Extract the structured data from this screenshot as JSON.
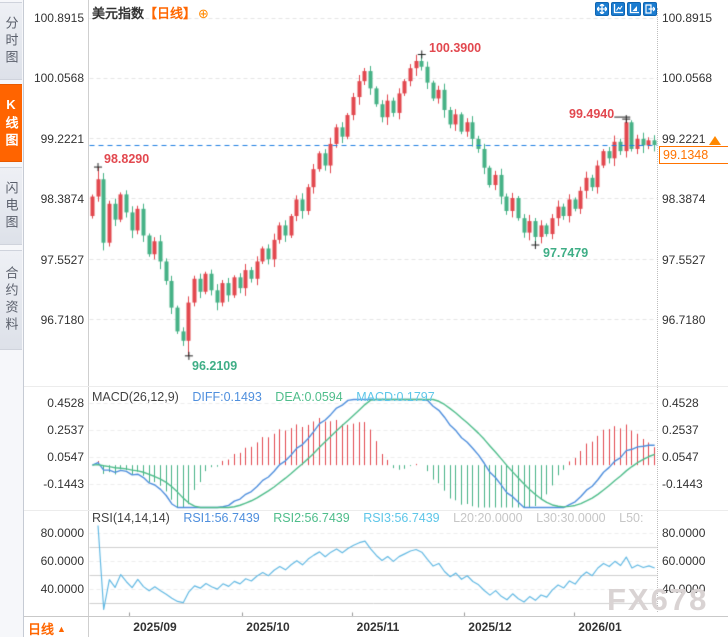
{
  "header": {
    "symbol": "美元指数",
    "period_tag": "【日线】",
    "add_indicator_icon": "⊕"
  },
  "sidebar": {
    "active_index": 1,
    "tabs": [
      {
        "label": "分时图"
      },
      {
        "label": "K线图"
      },
      {
        "label": "闪电图"
      },
      {
        "label": "合约资料"
      }
    ]
  },
  "toolbar": {
    "icons": [
      "pan-icon",
      "axis-zoom-icon",
      "axis-auto-icon",
      "go-latest-icon"
    ]
  },
  "main_chart": {
    "y_labels": [
      "100.8915",
      "100.0568",
      "99.2221",
      "98.3874",
      "97.5527",
      "96.7180"
    ],
    "current_price": "99.1348",
    "annotations": [
      {
        "text": "98.8290",
        "color": "red"
      },
      {
        "text": "100.3900",
        "color": "red"
      },
      {
        "text": "99.4940",
        "color": "red"
      },
      {
        "text": "97.7479",
        "color": "green"
      },
      {
        "text": "96.2109",
        "color": "green"
      }
    ]
  },
  "macd_panel": {
    "title": "MACD(26,12,9)",
    "diff_label": "DIFF:0.1493",
    "dea_label": "DEA:0.0594",
    "macd_label": "MACD:0.1797",
    "y_labels": [
      "0.4528",
      "0.2537",
      "0.0547",
      "-0.1443"
    ]
  },
  "rsi_panel": {
    "title": "RSI(14,14,14)",
    "rsi1_label": "RSI1:56.7439",
    "rsi2_label": "RSI2:56.7439",
    "rsi3_label": "RSI3:56.7439",
    "l20_label": "L20:20.0000",
    "l30_label": "L30:30.0000",
    "l50_label": "L50:",
    "y_labels": [
      "80.0000",
      "60.0000",
      "40.0000"
    ]
  },
  "x_axis": {
    "period_label": "日线",
    "labels": [
      "2025/09",
      "2025/10",
      "2025/11",
      "2025/12",
      "2026/01"
    ]
  },
  "watermark": "FX678",
  "colors": {
    "up": "#e2484f",
    "down": "#46b286",
    "accent_orange": "#ff6600",
    "price_line": "#1e7ee0",
    "diff_line": "#4f8fdd",
    "dea_line": "#4fbd8b",
    "rsi_line": "#63b9e3",
    "grid": "#e4e4e4",
    "ref_line": "#cfcfcf",
    "toolbar_blue": "#1b7cd0"
  },
  "chart_data": [
    {
      "type": "candlestick",
      "title": "美元指数 日线",
      "x_tick_labels": [
        "2025/09",
        "2025/10",
        "2025/11",
        "2025/12",
        "2026/01"
      ],
      "x_tick_indices": [
        11,
        31,
        50,
        70,
        89
      ],
      "ylim": [
        95.8,
        101.0
      ],
      "y_ticks": [
        100.8915,
        100.0568,
        99.2221,
        98.3874,
        97.5527,
        96.718
      ],
      "last": 99.1348,
      "open_first": 98.15,
      "closes": [
        98.42,
        98.66,
        97.78,
        98.32,
        98.1,
        98.45,
        98.2,
        97.95,
        98.25,
        97.88,
        97.62,
        97.8,
        97.52,
        97.25,
        96.88,
        96.55,
        96.42,
        96.95,
        97.28,
        97.1,
        97.35,
        97.12,
        96.95,
        97.22,
        97.05,
        97.3,
        97.15,
        97.4,
        97.28,
        97.52,
        97.7,
        97.55,
        97.82,
        98.02,
        97.88,
        98.15,
        98.38,
        98.22,
        98.55,
        98.8,
        99.02,
        98.85,
        99.15,
        99.38,
        99.25,
        99.55,
        99.8,
        100.02,
        100.16,
        99.92,
        99.7,
        99.52,
        99.75,
        99.58,
        99.85,
        100.02,
        100.2,
        100.3,
        100.22,
        100.0,
        99.78,
        99.9,
        99.62,
        99.42,
        99.56,
        99.32,
        99.45,
        99.22,
        99.08,
        98.82,
        98.58,
        98.72,
        98.42,
        98.22,
        98.4,
        98.12,
        97.92,
        98.08,
        97.86,
        98.02,
        97.9,
        98.12,
        98.28,
        98.15,
        98.38,
        98.25,
        98.5,
        98.68,
        98.55,
        98.85,
        99.05,
        98.95,
        99.18,
        99.05,
        99.45,
        99.08,
        99.22,
        99.13,
        99.2,
        99.1348
      ],
      "wick_overrides": {
        "1": {
          "high": 98.829
        },
        "17": {
          "low": 96.2109
        },
        "58": {
          "high": 100.39
        },
        "78": {
          "low": 97.7479
        },
        "94": {
          "high": 99.494
        }
      },
      "key_points": [
        {
          "index": 1,
          "price": 98.829,
          "label": "98.8290"
        },
        {
          "index": 17,
          "price": 96.2109,
          "label": "96.2109"
        },
        {
          "index": 58,
          "price": 100.39,
          "label": "100.3900"
        },
        {
          "index": 78,
          "price": 97.7479,
          "label": "97.7479"
        },
        {
          "index": 94,
          "price": 99.494,
          "label": "99.4940"
        }
      ]
    },
    {
      "type": "macd",
      "params": [
        26,
        12,
        9
      ],
      "current": {
        "diff": 0.1493,
        "dea": 0.0594,
        "macd": 0.1797
      },
      "y_ticks": [
        0.4528,
        0.2537,
        0.0547,
        -0.1443
      ],
      "derived_from": "closes of series 0 (EMA12-EMA26, DEA=EMA9(DIFF), hist=2*(DIFF-DEA))"
    },
    {
      "type": "line",
      "name": "RSI",
      "params": [
        14,
        14,
        14
      ],
      "current": {
        "rsi1": 56.7439,
        "rsi2": 56.7439,
        "rsi3": 56.7439
      },
      "y_ticks": [
        80,
        60,
        40
      ],
      "ref_lines": [
        70,
        50,
        30
      ],
      "range": [
        0,
        100
      ],
      "derived_from": "closes of series 0 (Wilder RSI-14; all three periods identical)"
    }
  ]
}
